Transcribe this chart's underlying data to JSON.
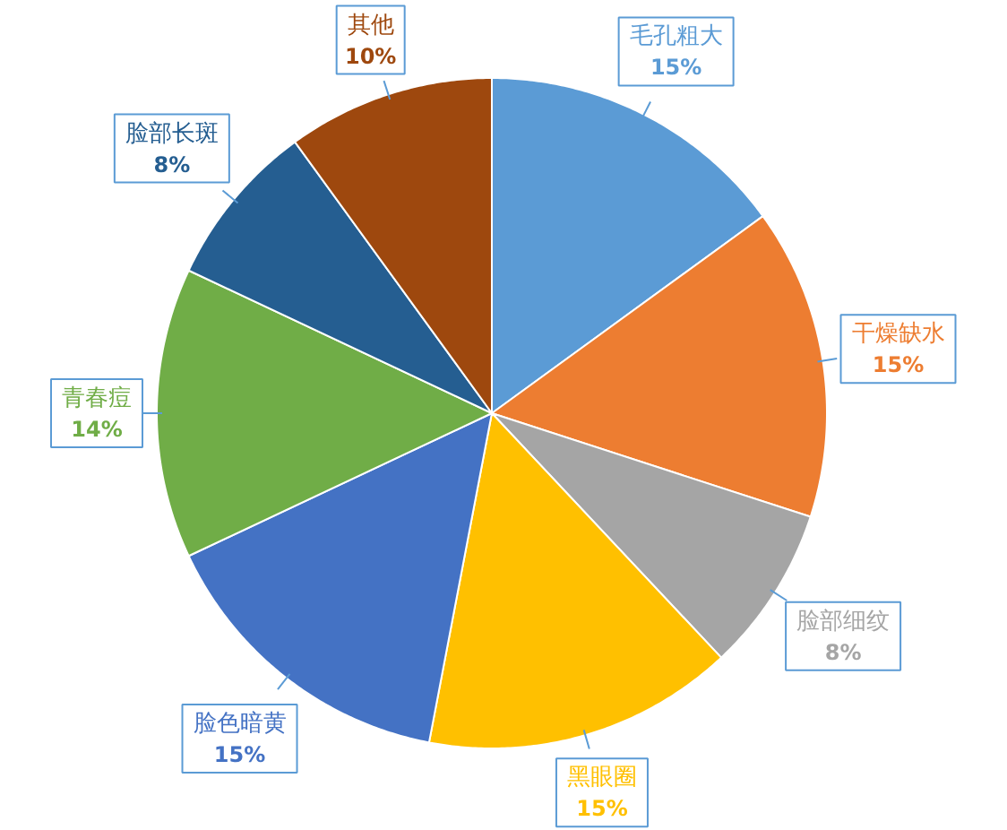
{
  "chart_data": {
    "type": "pie",
    "categories": [
      "毛孔粗大",
      "干燥缺水",
      "脸部细纹",
      "黑眼圈",
      "脸色暗黄",
      "青春痘",
      "脸部长斑",
      "其他"
    ],
    "values": [
      15,
      15,
      8,
      15,
      15,
      14,
      8,
      10
    ],
    "value_labels": [
      "15%",
      "15%",
      "8%",
      "15%",
      "15%",
      "14%",
      "8%",
      "10%"
    ],
    "colors": [
      "#5b9bd5",
      "#ed7d31",
      "#a5a5a5",
      "#ffc000",
      "#4472c4",
      "#70ad47",
      "#255e91",
      "#9e480e"
    ]
  }
}
